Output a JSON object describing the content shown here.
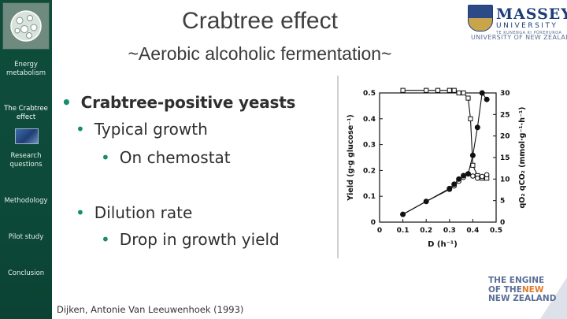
{
  "sidebar": {
    "items": [
      {
        "label": "Energy metabolism"
      },
      {
        "label": "The Crabtree effect"
      },
      {
        "label": "Research questions"
      },
      {
        "label": "Methodology"
      },
      {
        "label": "Pilot study"
      },
      {
        "label": "Conclusion"
      }
    ]
  },
  "slide": {
    "title": "Crabtree effect",
    "subtitle": "~Aerobic alcoholic fermentation~",
    "bullets": {
      "b1": "Crabtree-positive yeasts",
      "b1_1": "Typical growth",
      "b1_1_1": "On chemostat",
      "b2": "Dilution rate",
      "b2_1": "Drop in growth yield"
    },
    "citation": "Dijken, Antonie Van Leeuwenhoek (1993)"
  },
  "branding": {
    "massey_name": "MASSEY",
    "massey_university": "UNIVERSITY",
    "massey_small": "TE KUNENGA KI PŪREHUROA",
    "massey_nz": "UNIVERSITY OF NEW ZEALAND",
    "engine_line1": "THE ENGINE",
    "engine_of": "OF THE",
    "engine_new": "NEW",
    "engine_line3": "NEW ZEALAND"
  },
  "chart_data": {
    "type": "line",
    "xlabel": "D (h⁻¹)",
    "ylabel_left": "Yield (g·g glucose⁻¹)",
    "ylabel_right": "qO₂ qCO₂ (mmol·g⁻¹·h⁻¹)",
    "x_ticks": [
      "0",
      "0.1",
      "0.2",
      "0.3",
      "0.4",
      "0.5"
    ],
    "y_left_ticks": [
      "0",
      "0.1",
      "0.2",
      "0.3",
      "0.4",
      "0.5"
    ],
    "y_right_ticks": [
      "0",
      "5",
      "10",
      "15",
      "20",
      "25",
      "30"
    ],
    "xlim": [
      0,
      0.5
    ],
    "ylim_left": [
      0,
      0.5
    ],
    "ylim_right": [
      0,
      30
    ],
    "series": [
      {
        "marker": "square",
        "axis": "left",
        "x": [
          0.1,
          0.2,
          0.25,
          0.3,
          0.32,
          0.34,
          0.36,
          0.38,
          0.39,
          0.4,
          0.42,
          0.44,
          0.46
        ],
        "y": [
          0.51,
          0.51,
          0.51,
          0.51,
          0.51,
          0.5,
          0.5,
          0.48,
          0.4,
          0.22,
          0.18,
          0.17,
          0.17
        ]
      },
      {
        "marker": "circle-open",
        "axis": "right",
        "x": [
          0.1,
          0.2,
          0.3,
          0.32,
          0.34,
          0.36,
          0.38,
          0.4,
          0.42,
          0.44,
          0.46
        ],
        "y": [
          1.8,
          4.8,
          7.6,
          8.4,
          9.5,
          10.4,
          11.2,
          10.7,
          10.2,
          10.6,
          11.0
        ]
      },
      {
        "marker": "circle-filled",
        "axis": "right",
        "x": [
          0.1,
          0.2,
          0.3,
          0.32,
          0.34,
          0.36,
          0.38,
          0.4,
          0.42,
          0.44,
          0.46
        ],
        "y": [
          1.8,
          4.8,
          7.8,
          8.8,
          10.0,
          10.8,
          11.2,
          15.5,
          22.0,
          30.0,
          28.5
        ]
      }
    ]
  }
}
